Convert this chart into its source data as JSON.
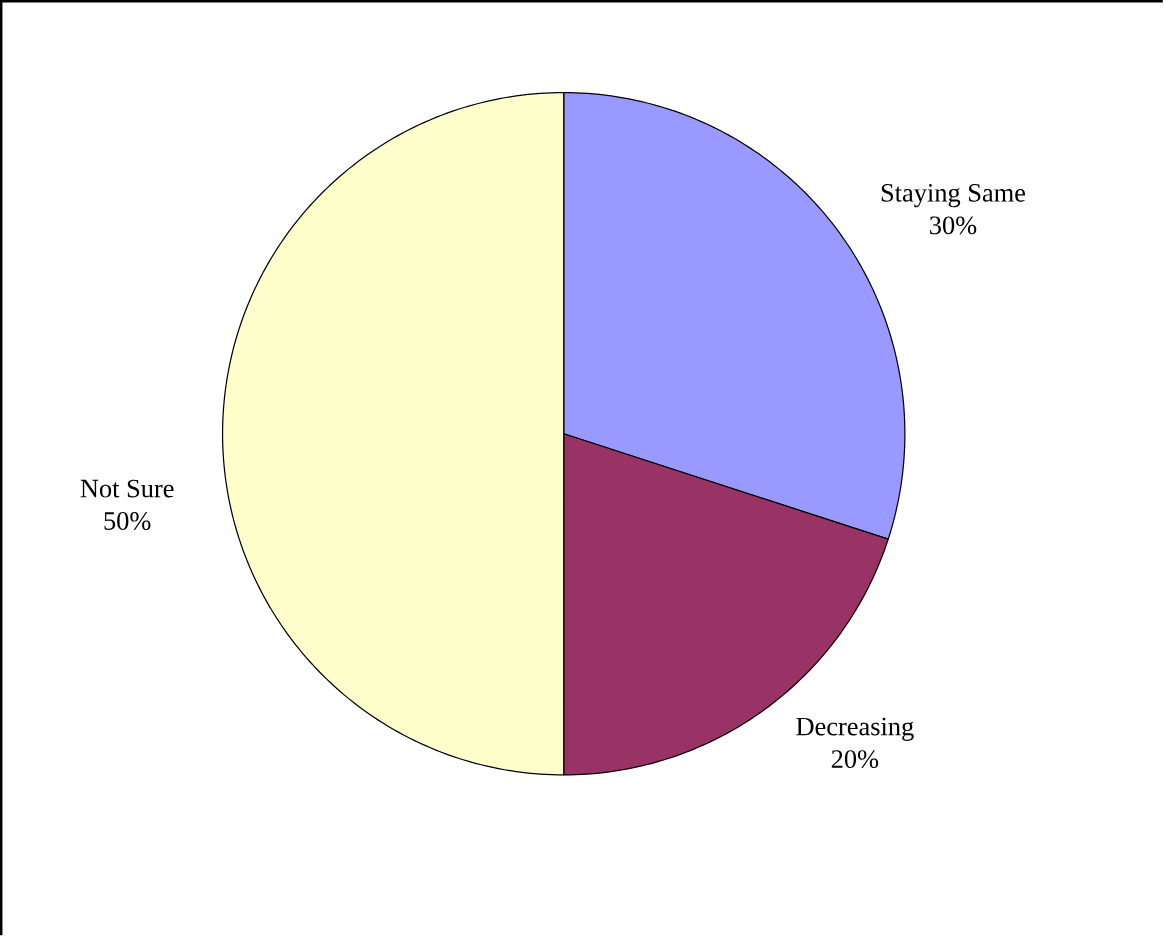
{
  "chart_data": {
    "type": "pie",
    "categories": [
      "Staying Same",
      "Decreasing",
      "Not Sure"
    ],
    "values": [
      30,
      20,
      50
    ],
    "value_labels": [
      "30%",
      "20%",
      "50%"
    ],
    "colors": [
      "#9999ff",
      "#993366",
      "#ffffcc"
    ]
  }
}
